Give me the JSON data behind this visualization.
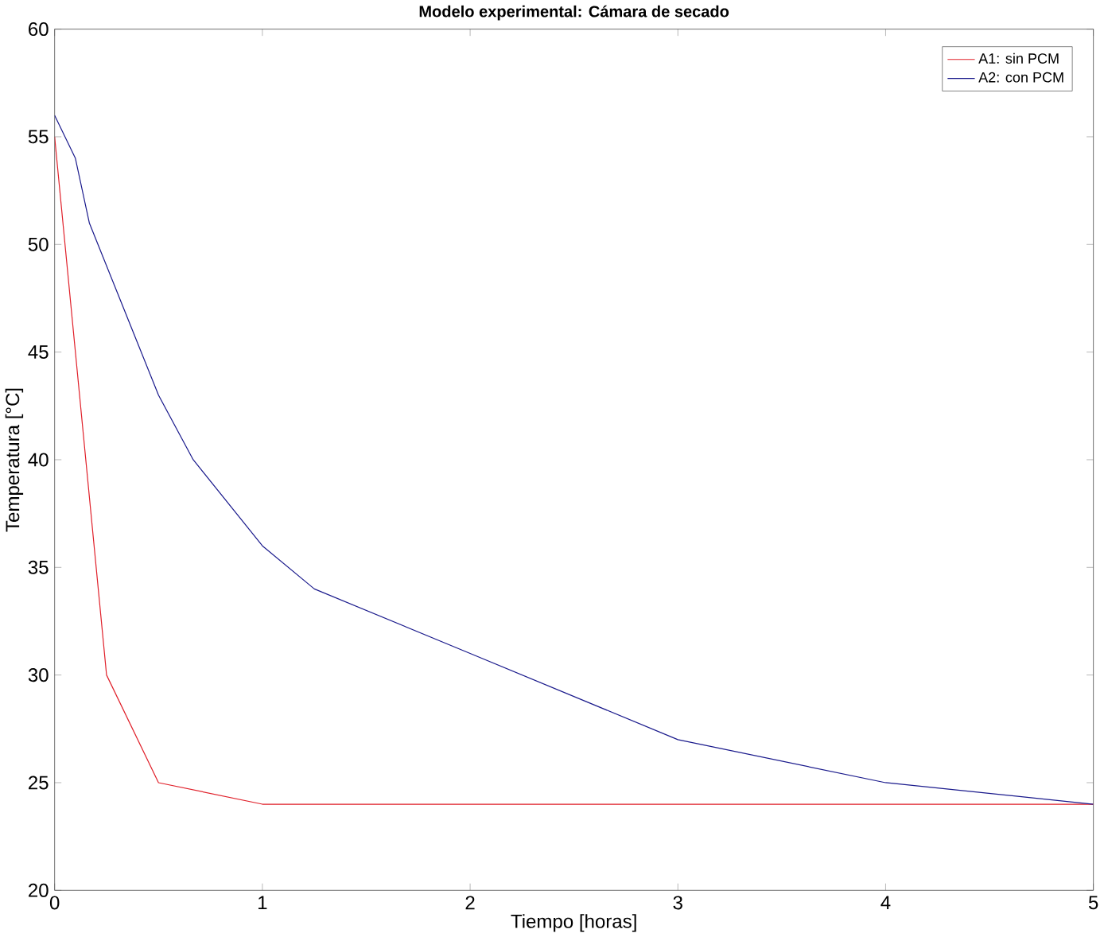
{
  "chart_data": {
    "type": "line",
    "title": "Modelo experimental: Cámara de secado",
    "xlabel": "Tiempo [horas]",
    "ylabel": "Temperatura [°C]",
    "xlim": [
      0,
      5
    ],
    "ylim": [
      20,
      60
    ],
    "xticks": [
      0,
      1,
      2,
      3,
      4,
      5
    ],
    "yticks": [
      20,
      25,
      30,
      35,
      40,
      45,
      50,
      55,
      60
    ],
    "grid": false,
    "legend": "top right",
    "series": [
      {
        "name": "A1: sin PCM",
        "color": "#e0202a",
        "x": [
          0,
          0.25,
          0.5,
          1,
          5
        ],
        "values": [
          55,
          30,
          25,
          24,
          24
        ]
      },
      {
        "name": "A2: con PCM",
        "color": "#1a1a8c",
        "x": [
          0,
          0.1,
          0.167,
          0.5,
          0.667,
          1,
          1.25,
          2,
          3,
          4,
          5
        ],
        "values": [
          56,
          54,
          51,
          43,
          40,
          36,
          34,
          31,
          27,
          25,
          24
        ]
      }
    ]
  }
}
